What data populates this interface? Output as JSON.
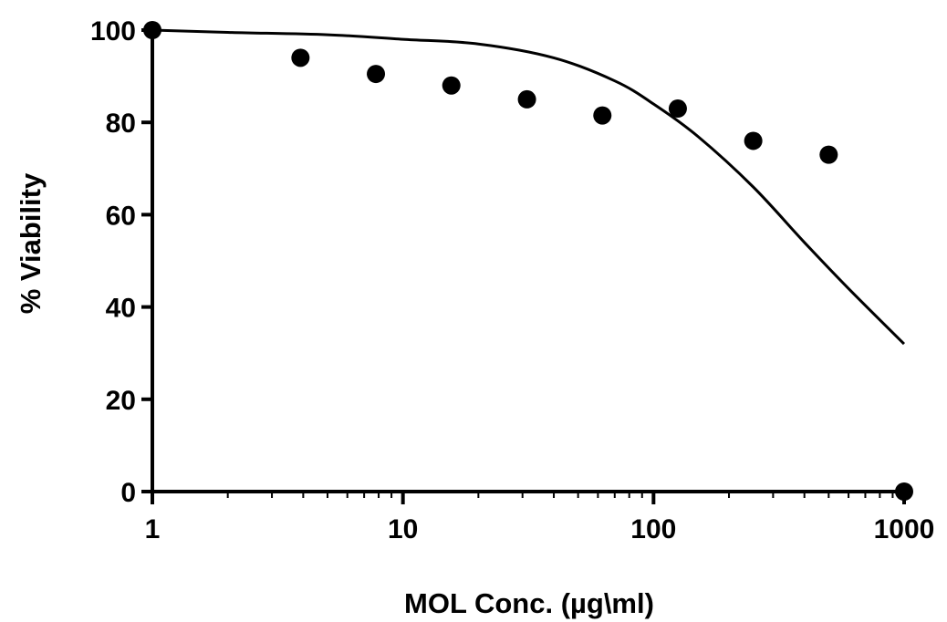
{
  "chart_data": {
    "type": "scatter",
    "xlabel": "MOL Conc. (µg\\ml)",
    "ylabel": "% Viability",
    "x_scale": "log",
    "xlim": [
      1,
      1000
    ],
    "ylim": [
      0,
      100
    ],
    "x_ticks": [
      {
        "value": 1,
        "label": "1"
      },
      {
        "value": 10,
        "label": "10"
      },
      {
        "value": 100,
        "label": "100"
      },
      {
        "value": 1000,
        "label": "1000"
      }
    ],
    "y_ticks": [
      {
        "value": 0,
        "label": "0"
      },
      {
        "value": 20,
        "label": "20"
      },
      {
        "value": 40,
        "label": "40"
      },
      {
        "value": 60,
        "label": "60"
      },
      {
        "value": 80,
        "label": "80"
      },
      {
        "value": 100,
        "label": "100"
      }
    ],
    "grid": false,
    "legend": "none",
    "points": {
      "x": [
        1,
        3.9,
        7.8,
        15.6,
        31.25,
        62.5,
        125,
        250,
        500,
        1000
      ],
      "y": [
        100,
        94,
        90.5,
        88,
        85,
        81.5,
        83,
        76,
        73,
        0
      ]
    },
    "fit_curve": {
      "x": [
        1,
        2,
        5,
        10,
        20,
        40,
        70,
        100,
        150,
        250,
        400,
        600,
        1000
      ],
      "y": [
        100,
        99.5,
        99,
        98,
        97,
        94,
        89,
        84,
        77,
        66,
        54,
        44,
        32
      ]
    },
    "colors": {
      "points": "#000000",
      "curve": "#000000",
      "axes": "#000000"
    }
  }
}
